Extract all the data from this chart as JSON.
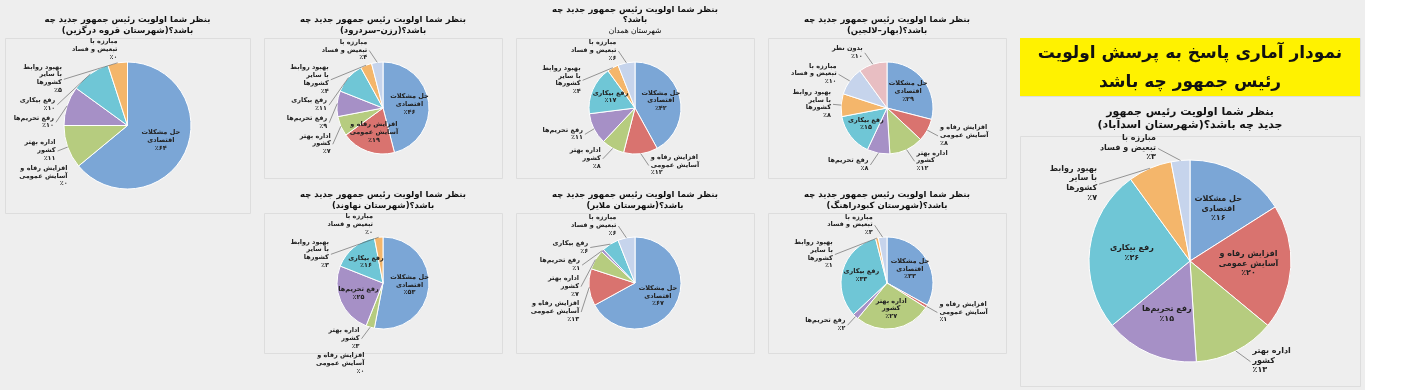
{
  "chart_data": [
    {
      "type": "other",
      "title": "نمودار آماری پاسخ به پرسش اولویت رئیس جمهور چه باشد"
    },
    {
      "type": "pie",
      "title": "بنظر شما اولویت رئیس جمهور جدید چه باشد؟(شهرستان اسدآباد)",
      "categories": [
        "حل مشکلات اقتصادی",
        "افزایش رفاه و آسایش عمومی",
        "اداره بهتر کشور",
        "رفع تحریم‌ها",
        "رفع بیکاری",
        "بهبود روابط با سایر کشورها",
        "مبارزه با تبعیض و فساد"
      ],
      "values": [
        16,
        20,
        13,
        15,
        26,
        7,
        3
      ],
      "value_labels": [
        "٪۱۶",
        "٪۲۰",
        "٪۱۳",
        "٪۱۵",
        "٪۲۶",
        "٪۷",
        "٪۳"
      ],
      "colors": [
        "#7ba6d6",
        "#d9736f",
        "#b6cc7f",
        "#a690c6",
        "#6fc6d6",
        "#f4b66b",
        "#c6d4ec"
      ]
    },
    {
      "type": "pie",
      "title": "بنظر شما اولویت رئیس جمهور جدید چه باشد؟(بهار–لالجین)",
      "categories": [
        "حل مشکلات اقتصادی",
        "افزایش رفاه و آسایش عمومی",
        "اداره بهتر کشور",
        "رفع تحریم‌ها",
        "رفع بیکاری",
        "بهبود روابط با سایر کشورها",
        "مبارزه با تبعیض و فساد",
        "بدون نظر"
      ],
      "values": [
        29,
        8,
        12,
        8,
        15,
        8,
        10,
        10
      ],
      "value_labels": [
        "٪۲۹",
        "٪۸",
        "٪۱۲",
        "٪۸",
        "٪۱۵",
        "٪۸",
        "٪۱۰",
        "٪۱۰"
      ],
      "colors": [
        "#7ba6d6",
        "#d9736f",
        "#b6cc7f",
        "#a690c6",
        "#6fc6d6",
        "#f4b66b",
        "#c6d4ec",
        "#e8bec2"
      ]
    },
    {
      "type": "pie",
      "title": "بنظر شما اولویت رئیس جمهور جدید چه باشد؟(شهرستان کبودراهنگ)",
      "categories": [
        "حل مشکلات اقتصادی",
        "افزایش رفاه و آسایش عمومی",
        "اداره بهتر کشور",
        "رفع تحریم‌ها",
        "رفع بیکاری",
        "بهبود روابط با سایر کشورها",
        "مبارزه با تبعیض و فساد"
      ],
      "values": [
        33,
        1,
        27,
        2,
        33,
        1,
        3
      ],
      "value_labels": [
        "٪۳۳",
        "٪۱",
        "٪۲۷",
        "٪۲",
        "٪۳۳",
        "٪۱",
        "٪۳"
      ],
      "colors": [
        "#7ba6d6",
        "#d9736f",
        "#b6cc7f",
        "#a690c6",
        "#6fc6d6",
        "#f4b66b",
        "#c6d4ec"
      ]
    },
    {
      "type": "pie",
      "title": "بنظر شما اولویت رئیس جمهور جدید چه باشد؟",
      "subtitle": "شهرستان همدان",
      "categories": [
        "حل مشکلات اقتصادی",
        "افزایش رفاه و آسایش عمومی",
        "اداره بهتر کشور",
        "رفع تحریم‌ها",
        "رفع بیکاری",
        "بهبود روابط با سایر کشورها",
        "مبارزه با تبعیض و فساد"
      ],
      "values": [
        42,
        12,
        8,
        11,
        17,
        4,
        6
      ],
      "value_labels": [
        "٪۴۲",
        "٪۱۲",
        "٪۸",
        "٪۱۱",
        "٪۱۷",
        "٪۴",
        "٪۶"
      ],
      "colors": [
        "#7ba6d6",
        "#d9736f",
        "#b6cc7f",
        "#a690c6",
        "#6fc6d6",
        "#f4b66b",
        "#c6d4ec"
      ]
    },
    {
      "type": "pie",
      "title": "بنظر شما اولویت رئیس جمهور جدید چه باشد؟(شهرستان ملایر)",
      "categories": [
        "حل مشکلات اقتصادی",
        "افزایش رفاه و آسایش عمومی",
        "اداره بهتر کشور",
        "رفع تحریم‌ها",
        "رفع بیکاری",
        "مبارزه با تبعیض و فساد"
      ],
      "values": [
        67,
        13,
        7,
        1,
        6,
        6
      ],
      "value_labels": [
        "٪۶۷",
        "٪۱۳",
        "٪۷",
        "٪۱",
        "٪۶",
        "٪۶"
      ],
      "colors": [
        "#7ba6d6",
        "#d9736f",
        "#b6cc7f",
        "#a690c6",
        "#6fc6d6",
        "#c6d4ec"
      ]
    },
    {
      "type": "pie",
      "title": "بنظر شما اولویت رئیس جمهور جدید چه باشد؟(رزن–سردرود)",
      "categories": [
        "حل مشکلات اقتصادی",
        "افزایش رفاه و آسایش عمومی",
        "اداره بهتر کشور",
        "رفع تحریم‌ها",
        "رفع بیکاری",
        "بهبود روابط با سایر کشورها",
        "مبارزه با تبعیض و فساد"
      ],
      "values": [
        46,
        19,
        7,
        9,
        11,
        4,
        4
      ],
      "value_labels": [
        "٪۴۶",
        "٪۱۹",
        "٪۷",
        "٪۹",
        "٪۱۱",
        "٪۴",
        "٪۴"
      ],
      "colors": [
        "#7ba6d6",
        "#d9736f",
        "#b6cc7f",
        "#a690c6",
        "#6fc6d6",
        "#f4b66b",
        "#c6d4ec"
      ]
    },
    {
      "type": "pie",
      "title": "بنظر شما اولویت رئیس جمهور جدید چه باشد؟(شهرستان نهاوند)",
      "categories": [
        "حل مشکلات اقتصادی",
        "افزایش رفاه و آسایش عمومی",
        "اداره بهتر کشور",
        "رفع تحریم‌ها",
        "رفع بیکاری",
        "بهبود روابط با سایر کشورها",
        "مبارزه با تبعیض و فساد"
      ],
      "values": [
        53,
        0,
        3,
        25,
        16,
        3,
        0
      ],
      "value_labels": [
        "٪۵۳",
        "٪۰",
        "٪۳",
        "٪۲۵",
        "٪۱۶",
        "٪۳",
        "٪۰"
      ],
      "colors": [
        "#7ba6d6",
        "#d9736f",
        "#b6cc7f",
        "#a690c6",
        "#6fc6d6",
        "#f4b66b",
        "#c6d4ec"
      ]
    },
    {
      "type": "pie",
      "title": "بنظر شما اولویت رئیس جمهور جدید چه باشد؟(شهرستان قروه درگزین)",
      "categories": [
        "حل مشکلات اقتصادی",
        "افزایش رفاه و آسایش عمومی",
        "اداره بهتر کشور",
        "رفع تحریم‌ها",
        "رفع بیکاری",
        "بهبود روابط با سایر کشورها",
        "مبارزه با تبعیض و فساد"
      ],
      "values": [
        64,
        0,
        11,
        10,
        10,
        5,
        0
      ],
      "value_labels": [
        "٪۶۴",
        "٪۰",
        "٪۱۱",
        "٪۱۰",
        "٪۱۰",
        "٪۵",
        "٪۰"
      ],
      "colors": [
        "#7ba6d6",
        "#d9736f",
        "#b6cc7f",
        "#a690c6",
        "#6fc6d6",
        "#f4b66b",
        "#c6d4ec"
      ]
    }
  ]
}
